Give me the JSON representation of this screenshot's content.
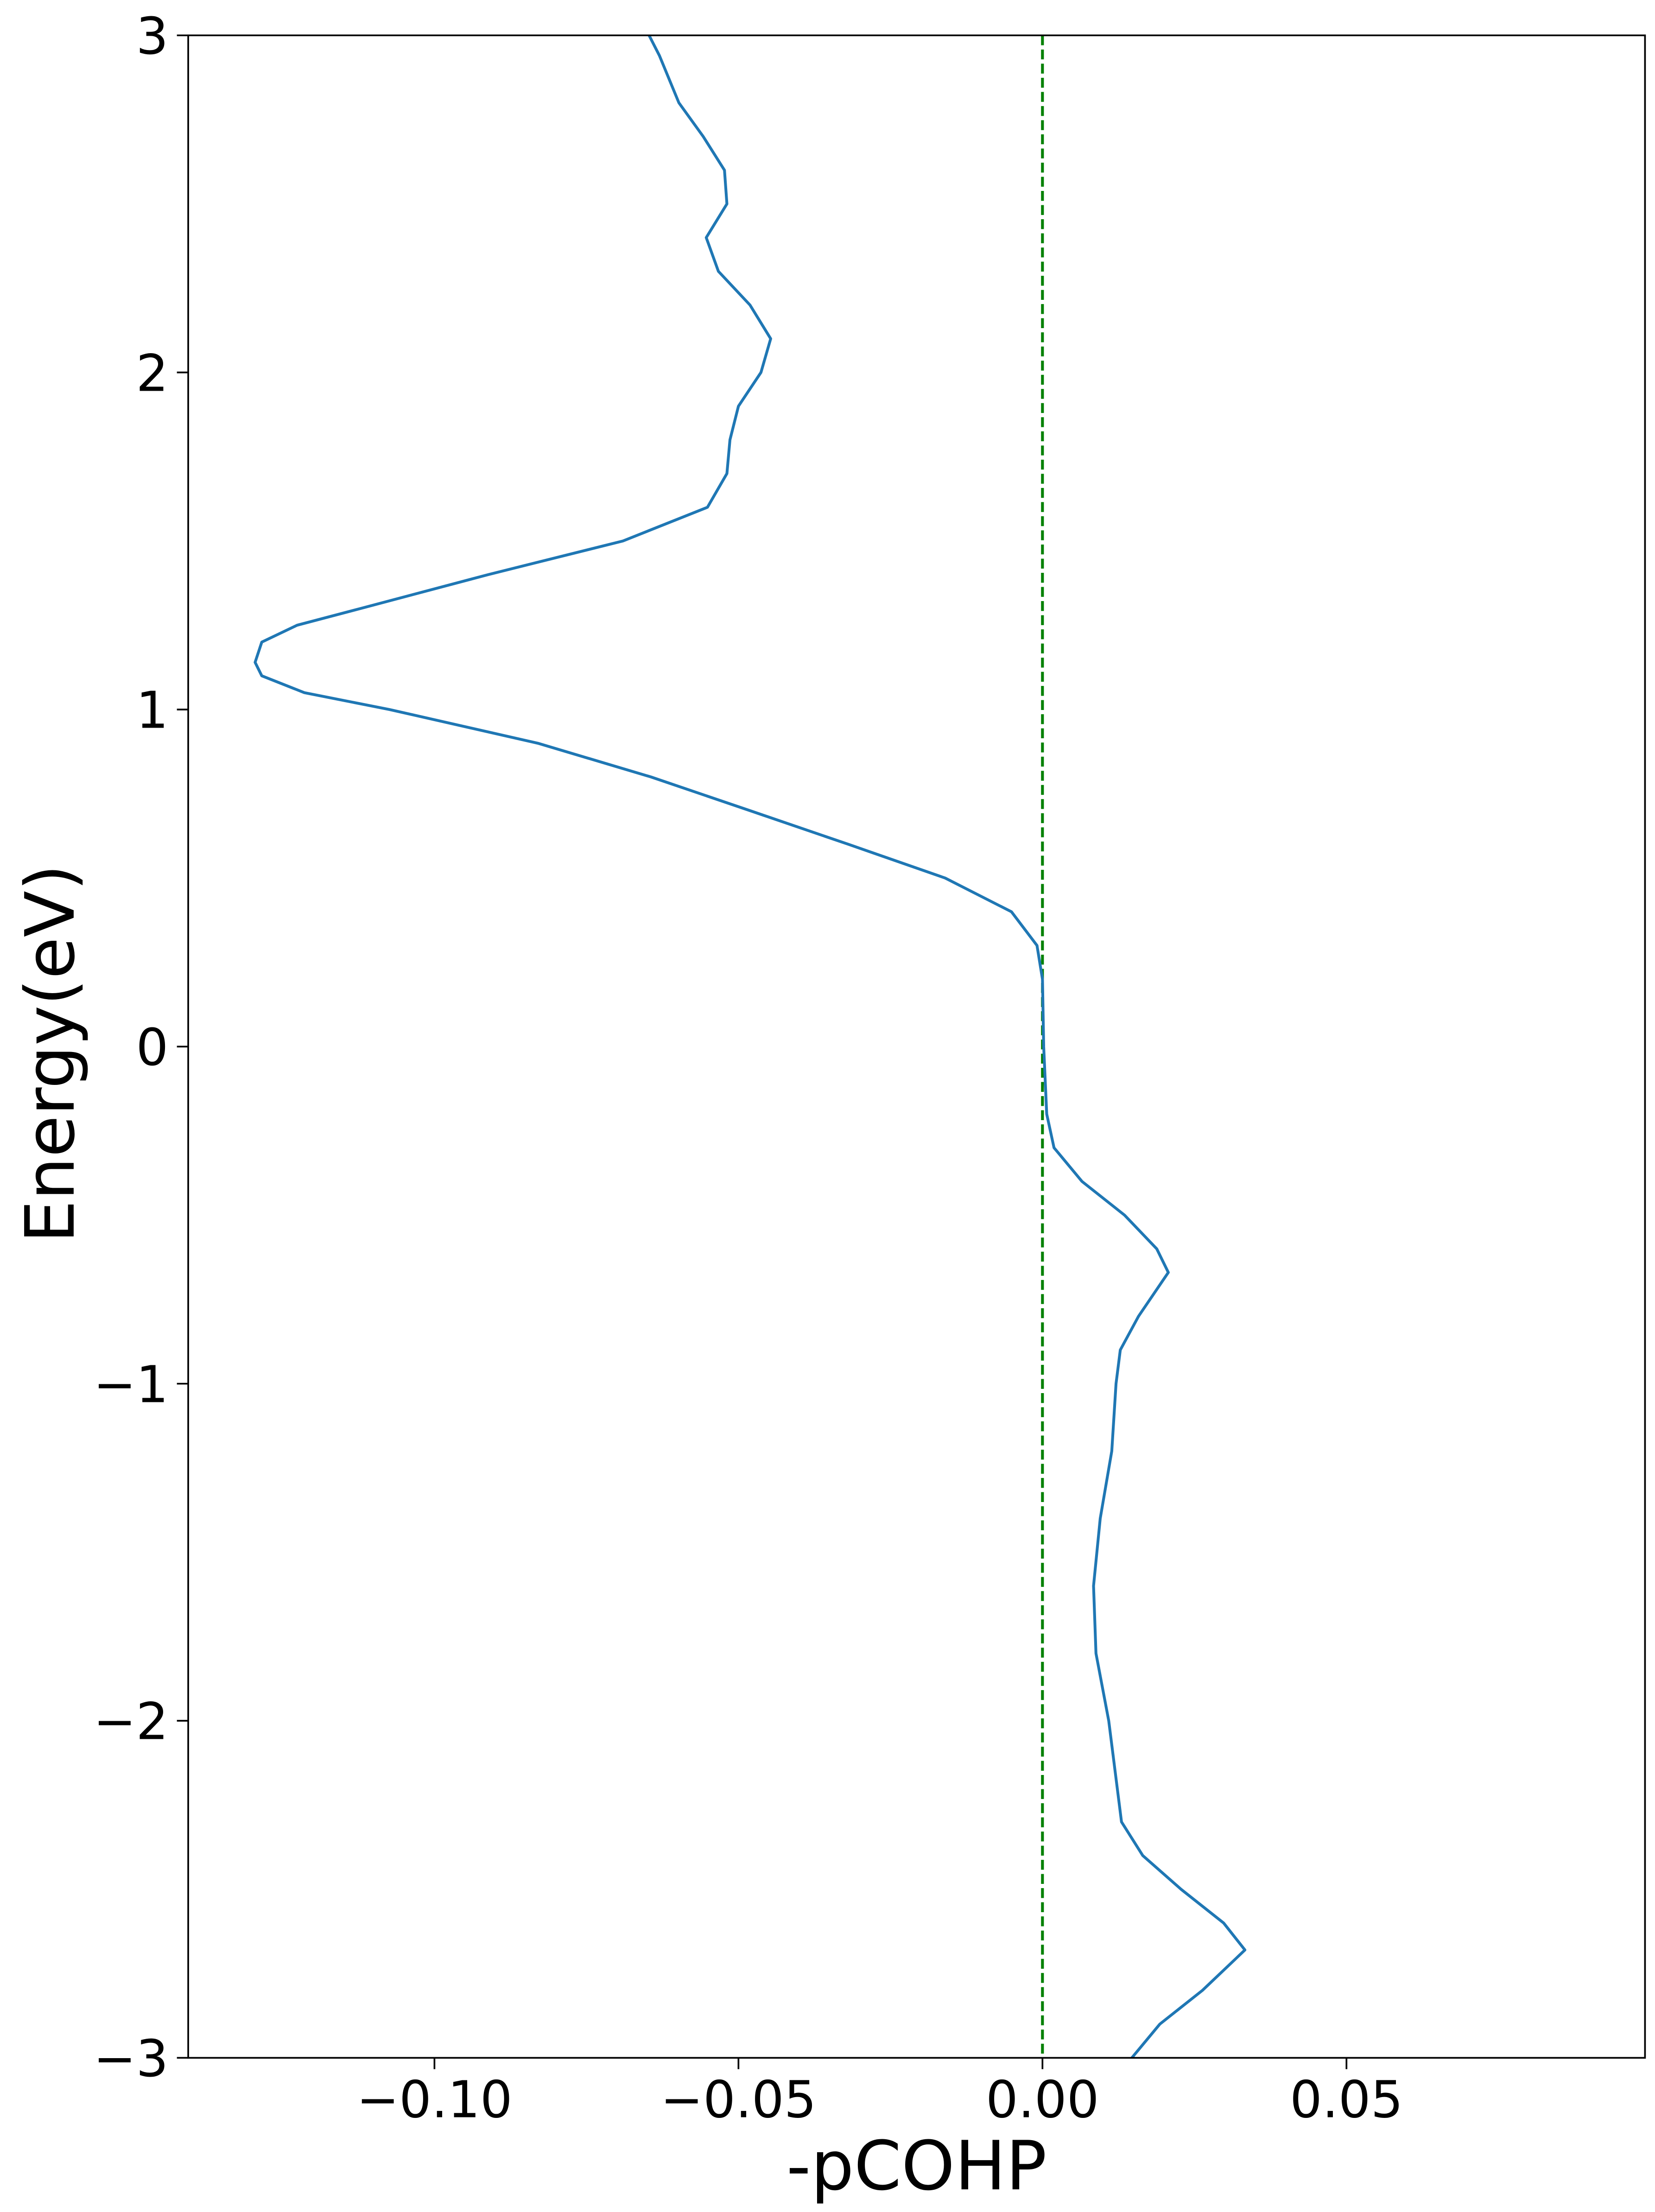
{
  "chart_data": {
    "type": "line",
    "orientation": "horizontal-values",
    "xlabel": "-pCOHP",
    "ylabel": "Energy(eV)",
    "xlim": [
      -0.1405,
      0.0991
    ],
    "ylim": [
      -3,
      3
    ],
    "xticks": [
      {
        "value": -0.1,
        "label": "−0.10"
      },
      {
        "value": -0.05,
        "label": "−0.05"
      },
      {
        "value": 0,
        "label": "0.00"
      },
      {
        "value": 0.05,
        "label": "0.05"
      }
    ],
    "yticks": [
      {
        "value": -3,
        "label": "−3"
      },
      {
        "value": -2,
        "label": "−2"
      },
      {
        "value": -1,
        "label": "−1"
      },
      0,
      1,
      2,
      3
    ],
    "reference_line": {
      "x": 0,
      "color": "#008000",
      "style": "dashed"
    },
    "y": [
      3,
      2.94,
      2.8,
      2.7,
      2.6,
      2.5,
      2.4,
      2.3,
      2.2,
      2.1,
      2.0,
      1.9,
      1.8,
      1.7,
      1.6,
      1.5,
      1.4,
      1.3,
      1.25,
      1.2,
      1.14,
      1.1,
      1.05,
      1.0,
      0.9,
      0.8,
      0.7,
      0.6,
      0.5,
      0.4,
      0.3,
      0.2,
      0,
      -0.2,
      -0.3,
      -0.4,
      -0.5,
      -0.6,
      -0.67,
      -0.8,
      -0.9,
      -1.0,
      -1.2,
      -1.4,
      -1.6,
      -1.8,
      -2.0,
      -2.2,
      -2.3,
      -2.4,
      -2.5,
      -2.6,
      -2.68,
      -2.8,
      -2.9,
      -3.0
    ],
    "series": [
      {
        "color": "#1f77b4",
        "values": [
          -0.0647,
          -0.063,
          -0.0598,
          -0.0558,
          -0.0523,
          -0.0519,
          -0.0553,
          -0.0533,
          -0.0481,
          -0.0447,
          -0.0463,
          -0.05,
          -0.0514,
          -0.0519,
          -0.0551,
          -0.069,
          -0.0912,
          -0.1121,
          -0.1226,
          -0.1284,
          -0.1295,
          -0.1284,
          -0.1214,
          -0.1074,
          -0.083,
          -0.0644,
          -0.0481,
          -0.0319,
          -0.016,
          -0.0051,
          -0.0009,
          0,
          0.0002,
          0.0007,
          0.0019,
          0.0065,
          0.0135,
          0.0188,
          0.0207,
          0.0158,
          0.0128,
          0.0121,
          0.0114,
          0.0095,
          0.0084,
          0.0088,
          0.0109,
          0.0123,
          0.013,
          0.0165,
          0.0228,
          0.0298,
          0.0333,
          0.0263,
          0.0193,
          0.0147
        ]
      }
    ]
  }
}
